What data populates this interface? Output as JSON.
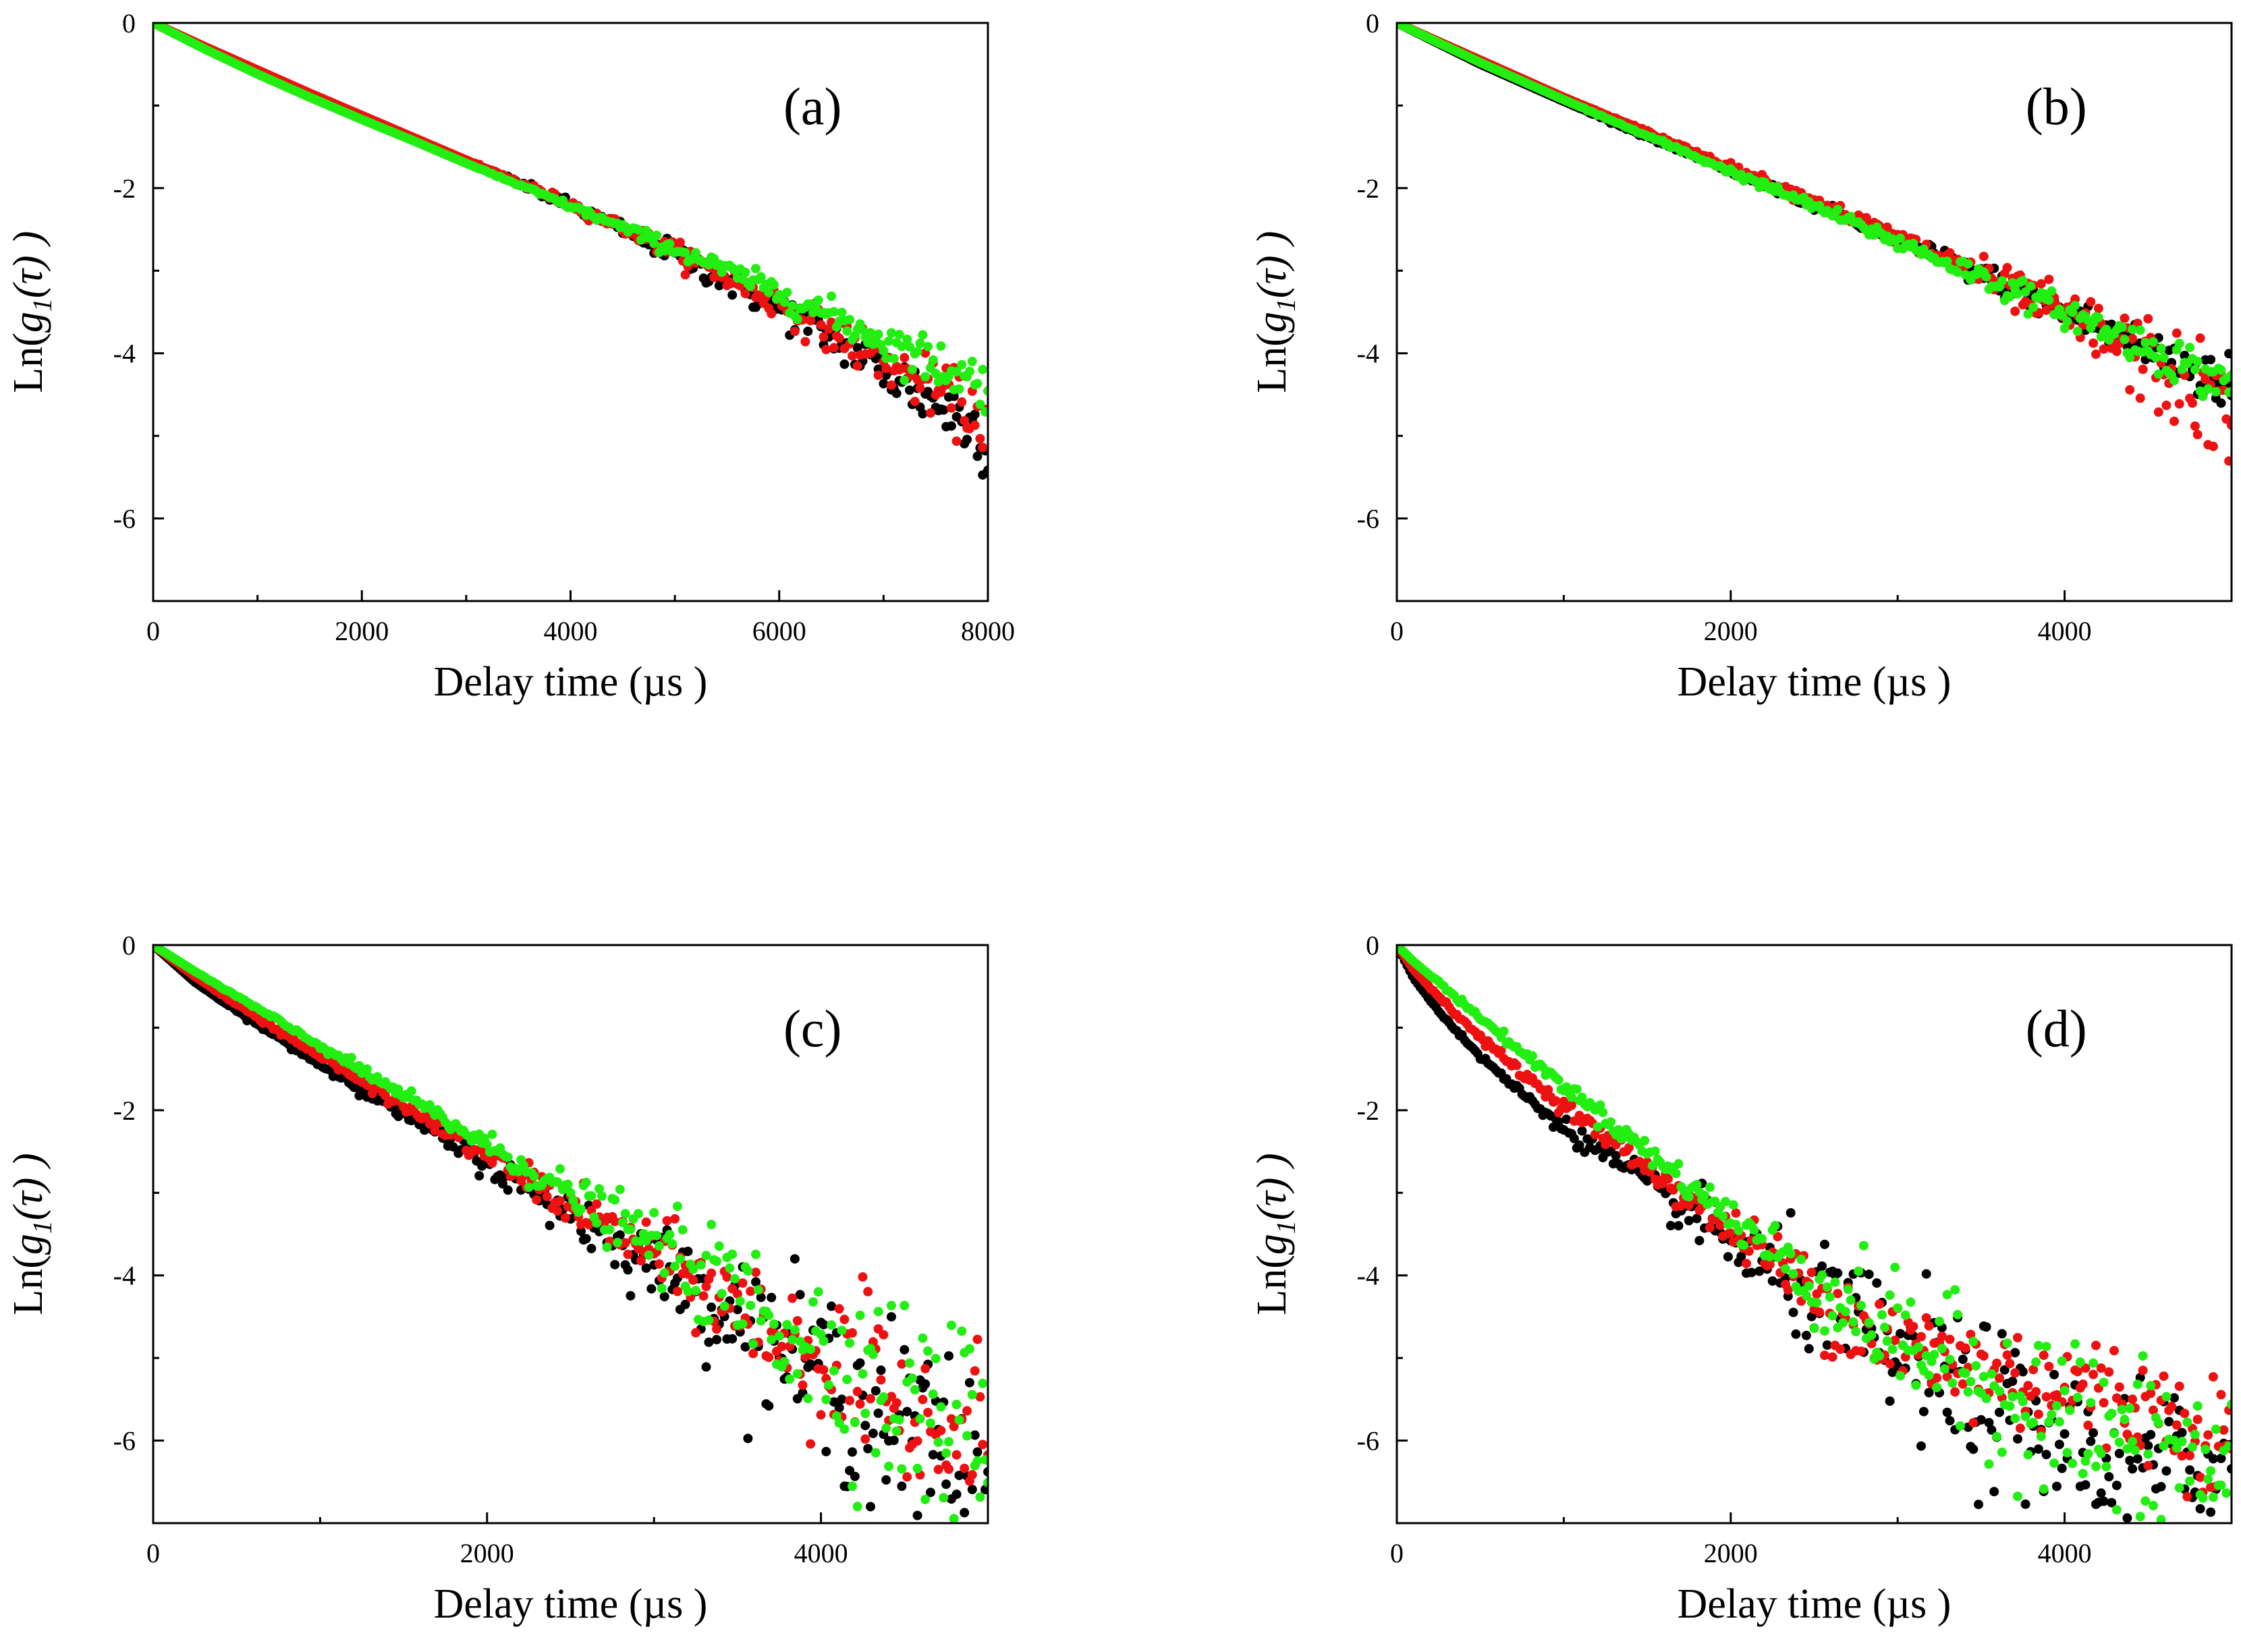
{
  "chart_data": [
    {
      "type": "scatter",
      "panel_label": "(a)",
      "xlabel": "Delay time (µs )",
      "ylabel": "Ln(g1(τ) )",
      "xlim": [
        0,
        8000
      ],
      "ylim": [
        -7,
        0
      ],
      "xticks": [
        0,
        2000,
        4000,
        6000,
        8000
      ],
      "yticks": [
        0,
        -2,
        -4,
        -6
      ],
      "grid": false,
      "series": [
        {
          "color": "#000000",
          "x": [
            0,
            500,
            1000,
            1500,
            2000,
            2500,
            3000,
            3500,
            4000,
            4500,
            5000,
            5500,
            6000,
            6500,
            7000,
            7500,
            8000
          ],
          "y": [
            0,
            -0.3,
            -0.58,
            -0.86,
            -1.13,
            -1.4,
            -1.67,
            -1.94,
            -2.22,
            -2.5,
            -2.8,
            -3.12,
            -3.45,
            -3.8,
            -4.2,
            -4.6,
            -5.0
          ],
          "scatter": [
            0,
            0,
            0,
            0,
            0,
            0,
            0,
            0.02,
            0.04,
            0.05,
            0.07,
            0.09,
            0.11,
            0.13,
            0.16,
            0.2,
            0.24
          ],
          "min_y": -7
        },
        {
          "color": "#ee1111",
          "x": [
            0,
            500,
            1000,
            1500,
            2000,
            2500,
            3000,
            3500,
            4000,
            4500,
            5000,
            5500,
            6000,
            6500,
            7000,
            7500,
            8000
          ],
          "y": [
            0,
            -0.29,
            -0.57,
            -0.85,
            -1.12,
            -1.39,
            -1.66,
            -1.93,
            -2.2,
            -2.48,
            -2.77,
            -3.08,
            -3.4,
            -3.74,
            -4.1,
            -4.45,
            -4.82
          ],
          "scatter": [
            0,
            0,
            0,
            0,
            0,
            0,
            0,
            0.02,
            0.03,
            0.04,
            0.06,
            0.08,
            0.1,
            0.12,
            0.14,
            0.17,
            0.2
          ],
          "min_y": -7
        },
        {
          "color": "#22ee11",
          "x": [
            0,
            500,
            1000,
            1500,
            2000,
            2500,
            3000,
            3500,
            4000,
            4500,
            5000,
            5500,
            6000,
            6500,
            7000,
            7500,
            8000
          ],
          "y": [
            0,
            -0.32,
            -0.62,
            -0.9,
            -1.17,
            -1.43,
            -1.7,
            -1.96,
            -2.22,
            -2.48,
            -2.74,
            -3.0,
            -3.27,
            -3.55,
            -3.84,
            -4.12,
            -4.4
          ],
          "scatter": [
            0,
            0,
            0,
            0,
            0,
            0,
            0,
            0.01,
            0.02,
            0.03,
            0.05,
            0.06,
            0.08,
            0.1,
            0.12,
            0.15,
            0.18
          ],
          "min_y": -7
        }
      ]
    },
    {
      "type": "scatter",
      "panel_label": "(b)",
      "xlabel": "Delay time (µs )",
      "ylabel": "Ln(g1(τ) )",
      "xlim": [
        0,
        5000
      ],
      "ylim": [
        -7,
        0
      ],
      "xticks": [
        0,
        2000,
        4000
      ],
      "yticks": [
        0,
        -2,
        -4,
        -6
      ],
      "grid": false,
      "series": [
        {
          "color": "#000000",
          "x": [
            0,
            500,
            1000,
            1500,
            2000,
            2500,
            3000,
            3500,
            4000,
            4500,
            5000
          ],
          "y": [
            0,
            -0.5,
            -0.95,
            -1.38,
            -1.8,
            -2.2,
            -2.62,
            -3.04,
            -3.5,
            -3.95,
            -4.4
          ],
          "scatter": [
            0,
            0,
            0,
            0.01,
            0.02,
            0.03,
            0.05,
            0.07,
            0.1,
            0.14,
            0.18
          ],
          "min_y": -7
        },
        {
          "color": "#ee1111",
          "x": [
            0,
            500,
            1000,
            1500,
            2000,
            2500,
            3000,
            3500,
            4000,
            4500,
            5000
          ],
          "y": [
            0,
            -0.45,
            -0.9,
            -1.32,
            -1.74,
            -2.16,
            -2.6,
            -3.05,
            -3.55,
            -4.1,
            -4.8
          ],
          "scatter": [
            0,
            0,
            0,
            0.01,
            0.02,
            0.04,
            0.06,
            0.1,
            0.16,
            0.28,
            0.35
          ],
          "min_y": -7
        },
        {
          "color": "#22ee11",
          "x": [
            0,
            500,
            1000,
            1500,
            2000,
            2500,
            3000,
            3500,
            4000,
            4500,
            5000
          ],
          "y": [
            0,
            -0.48,
            -0.93,
            -1.37,
            -1.8,
            -2.22,
            -2.65,
            -3.07,
            -3.5,
            -3.93,
            -4.4
          ],
          "scatter": [
            0,
            0,
            0,
            0.01,
            0.02,
            0.03,
            0.05,
            0.07,
            0.09,
            0.12,
            0.16
          ],
          "min_y": -7
        }
      ]
    },
    {
      "type": "scatter",
      "panel_label": "(c)",
      "xlabel": "Delay time (µs )",
      "ylabel": "Ln(g1(τ) )",
      "xlim": [
        0,
        5000
      ],
      "ylim": [
        -7,
        0
      ],
      "xticks": [
        0,
        2000,
        4000
      ],
      "yticks": [
        0,
        -2,
        -4,
        -6
      ],
      "grid": false,
      "series": [
        {
          "color": "#000000",
          "x": [
            0,
            250,
            500,
            1000,
            1500,
            2000,
            2500,
            3000,
            3500,
            4000,
            4500,
            5000
          ],
          "y": [
            0,
            -0.45,
            -0.8,
            -1.45,
            -2.05,
            -2.65,
            -3.25,
            -3.85,
            -4.5,
            -5.2,
            -5.9,
            -6.4
          ],
          "scatter": [
            0,
            0,
            0.01,
            0.02,
            0.04,
            0.08,
            0.15,
            0.22,
            0.35,
            0.5,
            0.6,
            0.65
          ],
          "min_y": -7
        },
        {
          "color": "#ee1111",
          "x": [
            0,
            250,
            500,
            1000,
            1500,
            2000,
            2500,
            3000,
            3500,
            4000,
            4500,
            5000
          ],
          "y": [
            0,
            -0.38,
            -0.72,
            -1.35,
            -1.95,
            -2.55,
            -3.15,
            -3.75,
            -4.4,
            -5.05,
            -5.7,
            -6.2
          ],
          "scatter": [
            0,
            0,
            0.01,
            0.02,
            0.04,
            0.07,
            0.12,
            0.2,
            0.32,
            0.45,
            0.55,
            0.6
          ],
          "min_y": -7
        },
        {
          "color": "#22ee11",
          "x": [
            0,
            250,
            500,
            1000,
            1500,
            2000,
            2500,
            3000,
            3500,
            4000,
            4500,
            5000
          ],
          "y": [
            0,
            -0.32,
            -0.62,
            -1.22,
            -1.82,
            -2.42,
            -3.02,
            -3.62,
            -4.25,
            -4.9,
            -5.5,
            -6.0
          ],
          "scatter": [
            0,
            0,
            0.01,
            0.02,
            0.04,
            0.07,
            0.12,
            0.2,
            0.35,
            0.5,
            0.6,
            0.65
          ],
          "min_y": -7
        }
      ]
    },
    {
      "type": "scatter",
      "panel_label": "(d)",
      "xlabel": "Delay time (µs )",
      "ylabel": "Ln(g1(τ) )",
      "xlim": [
        0,
        5000
      ],
      "ylim": [
        -7,
        0
      ],
      "xticks": [
        0,
        2000,
        4000
      ],
      "yticks": [
        0,
        -2,
        -4,
        -6
      ],
      "grid": false,
      "series": [
        {
          "color": "#000000",
          "x": [
            0,
            100,
            250,
            500,
            750,
            1000,
            1500,
            2000,
            2500,
            3000,
            3500,
            4000,
            4500,
            5000
          ],
          "y": [
            0,
            -0.4,
            -0.8,
            -1.35,
            -1.8,
            -2.2,
            -2.9,
            -3.6,
            -4.3,
            -5.0,
            -5.6,
            -6.1,
            -6.3,
            -6.4
          ],
          "scatter": [
            0,
            0,
            0.01,
            0.02,
            0.03,
            0.05,
            0.1,
            0.2,
            0.35,
            0.45,
            0.5,
            0.5,
            0.5,
            0.5
          ],
          "min_y": -7
        },
        {
          "color": "#ee1111",
          "x": [
            0,
            100,
            250,
            500,
            750,
            1000,
            1500,
            2000,
            2500,
            3000,
            3500,
            4000,
            4500,
            5000
          ],
          "y": [
            0,
            -0.3,
            -0.62,
            -1.12,
            -1.55,
            -1.95,
            -2.7,
            -3.45,
            -4.2,
            -4.85,
            -5.15,
            -5.35,
            -5.6,
            -6.0
          ],
          "scatter": [
            0,
            0,
            0.01,
            0.02,
            0.03,
            0.04,
            0.07,
            0.12,
            0.25,
            0.35,
            0.35,
            0.35,
            0.35,
            0.35
          ],
          "min_y": -7
        },
        {
          "color": "#22ee11",
          "x": [
            0,
            100,
            250,
            500,
            750,
            1000,
            1500,
            2000,
            2500,
            3000,
            3500,
            4000,
            4500,
            5000
          ],
          "y": [
            0,
            -0.2,
            -0.45,
            -0.88,
            -1.3,
            -1.7,
            -2.5,
            -3.3,
            -4.1,
            -4.75,
            -5.3,
            -5.7,
            -6.2,
            -6.4
          ],
          "scatter": [
            0,
            0,
            0.01,
            0.02,
            0.03,
            0.04,
            0.07,
            0.12,
            0.25,
            0.35,
            0.4,
            0.5,
            0.55,
            0.55
          ],
          "min_y": -7
        }
      ]
    }
  ]
}
